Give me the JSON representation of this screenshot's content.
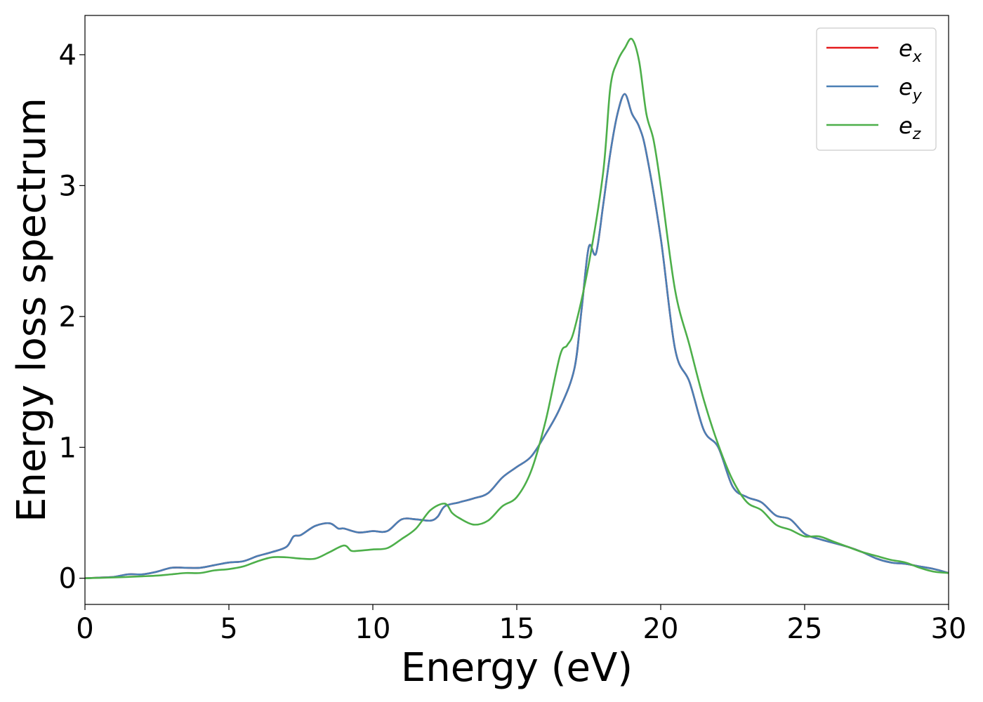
{
  "chart_data": {
    "type": "line",
    "xlabel": "Energy (eV)",
    "ylabel": "Energy loss spectrum",
    "xlim": [
      0,
      30
    ],
    "ylim": [
      -0.2,
      4.3
    ],
    "xticks": [
      0,
      5,
      10,
      15,
      20,
      25,
      30
    ],
    "xtick_labels": [
      "0",
      "5",
      "10",
      "15",
      "20",
      "25",
      "30"
    ],
    "yticks": [
      0,
      1,
      2,
      3,
      4
    ],
    "ytick_labels": [
      "0",
      "1",
      "2",
      "3",
      "4"
    ],
    "grid": false,
    "legend_position": "top-right",
    "series": [
      {
        "name": "e_x",
        "legend_base": "e",
        "legend_sub": "x",
        "color": "#e41a1c",
        "x": [
          0,
          0.5,
          1,
          1.5,
          2,
          2.5,
          3,
          3.5,
          4,
          4.5,
          5,
          5.5,
          6,
          6.5,
          7,
          7.25,
          7.5,
          8,
          8.5,
          8.8,
          9,
          9.5,
          10,
          10.5,
          11,
          11.5,
          12,
          12.25,
          12.5,
          13,
          13.5,
          14,
          14.5,
          15,
          15.5,
          16,
          16.5,
          17,
          17.25,
          17.5,
          17.75,
          18,
          18.25,
          18.5,
          18.75,
          19,
          19.25,
          19.5,
          20,
          20.5,
          21,
          21.5,
          22,
          22.5,
          23,
          23.5,
          24,
          24.5,
          25,
          25.5,
          26,
          26.5,
          27,
          27.5,
          28,
          28.5,
          29,
          29.5,
          30
        ],
        "y": [
          0,
          0.005,
          0.01,
          0.03,
          0.03,
          0.05,
          0.08,
          0.08,
          0.08,
          0.1,
          0.12,
          0.13,
          0.17,
          0.2,
          0.24,
          0.32,
          0.33,
          0.4,
          0.42,
          0.38,
          0.38,
          0.35,
          0.36,
          0.36,
          0.45,
          0.45,
          0.44,
          0.47,
          0.55,
          0.58,
          0.61,
          0.65,
          0.77,
          0.85,
          0.93,
          1.1,
          1.3,
          1.6,
          2.05,
          2.53,
          2.48,
          2.85,
          3.25,
          3.55,
          3.7,
          3.55,
          3.45,
          3.25,
          2.6,
          1.75,
          1.5,
          1.13,
          1.0,
          0.7,
          0.62,
          0.58,
          0.48,
          0.45,
          0.34,
          0.3,
          0.27,
          0.24,
          0.2,
          0.15,
          0.12,
          0.11,
          0.09,
          0.07,
          0.04
        ]
      },
      {
        "name": "e_y",
        "legend_base": "e",
        "legend_sub": "y",
        "color": "#4a7fb5",
        "x": [
          0,
          0.5,
          1,
          1.5,
          2,
          2.5,
          3,
          3.5,
          4,
          4.5,
          5,
          5.5,
          6,
          6.5,
          7,
          7.25,
          7.5,
          8,
          8.5,
          8.8,
          9,
          9.5,
          10,
          10.5,
          11,
          11.5,
          12,
          12.25,
          12.5,
          13,
          13.5,
          14,
          14.5,
          15,
          15.5,
          16,
          16.5,
          17,
          17.25,
          17.5,
          17.75,
          18,
          18.25,
          18.5,
          18.75,
          19,
          19.25,
          19.5,
          20,
          20.5,
          21,
          21.5,
          22,
          22.5,
          23,
          23.5,
          24,
          24.5,
          25,
          25.5,
          26,
          26.5,
          27,
          27.5,
          28,
          28.5,
          29,
          29.5,
          30
        ],
        "y": [
          0,
          0.005,
          0.01,
          0.03,
          0.03,
          0.05,
          0.08,
          0.08,
          0.08,
          0.1,
          0.12,
          0.13,
          0.17,
          0.2,
          0.24,
          0.32,
          0.33,
          0.4,
          0.42,
          0.38,
          0.38,
          0.35,
          0.36,
          0.36,
          0.45,
          0.45,
          0.44,
          0.47,
          0.55,
          0.58,
          0.61,
          0.65,
          0.77,
          0.85,
          0.93,
          1.1,
          1.3,
          1.6,
          2.05,
          2.53,
          2.48,
          2.85,
          3.25,
          3.55,
          3.7,
          3.55,
          3.45,
          3.25,
          2.6,
          1.75,
          1.5,
          1.13,
          1.0,
          0.7,
          0.62,
          0.58,
          0.48,
          0.45,
          0.34,
          0.3,
          0.27,
          0.24,
          0.2,
          0.15,
          0.12,
          0.11,
          0.09,
          0.07,
          0.04
        ]
      },
      {
        "name": "e_z",
        "legend_base": "e",
        "legend_sub": "z",
        "color": "#4daf4a",
        "x": [
          0,
          0.5,
          1,
          1.5,
          2,
          2.5,
          3,
          3.5,
          4,
          4.5,
          5,
          5.5,
          6,
          6.5,
          7,
          7.5,
          8,
          8.5,
          9,
          9.25,
          9.5,
          10,
          10.5,
          11,
          11.5,
          12,
          12.5,
          12.75,
          13,
          13.5,
          14,
          14.5,
          15,
          15.5,
          16,
          16.5,
          16.75,
          17,
          17.5,
          18,
          18.25,
          18.5,
          18.75,
          19,
          19.25,
          19.5,
          19.75,
          20,
          20.5,
          21,
          21.5,
          22,
          22.5,
          23,
          23.5,
          24,
          24.5,
          25,
          25.5,
          26,
          26.5,
          27,
          27.5,
          28,
          28.5,
          29,
          29.5,
          30
        ],
        "y": [
          0,
          0.003,
          0.006,
          0.01,
          0.015,
          0.02,
          0.03,
          0.04,
          0.04,
          0.06,
          0.07,
          0.09,
          0.13,
          0.16,
          0.16,
          0.15,
          0.15,
          0.2,
          0.25,
          0.21,
          0.21,
          0.22,
          0.23,
          0.3,
          0.38,
          0.52,
          0.57,
          0.5,
          0.46,
          0.41,
          0.44,
          0.55,
          0.62,
          0.82,
          1.2,
          1.7,
          1.78,
          1.9,
          2.4,
          3.1,
          3.75,
          3.95,
          4.05,
          4.12,
          3.95,
          3.55,
          3.35,
          3.0,
          2.2,
          1.78,
          1.36,
          1.02,
          0.75,
          0.58,
          0.52,
          0.41,
          0.37,
          0.32,
          0.32,
          0.28,
          0.24,
          0.2,
          0.17,
          0.14,
          0.12,
          0.08,
          0.05,
          0.04
        ]
      }
    ]
  }
}
